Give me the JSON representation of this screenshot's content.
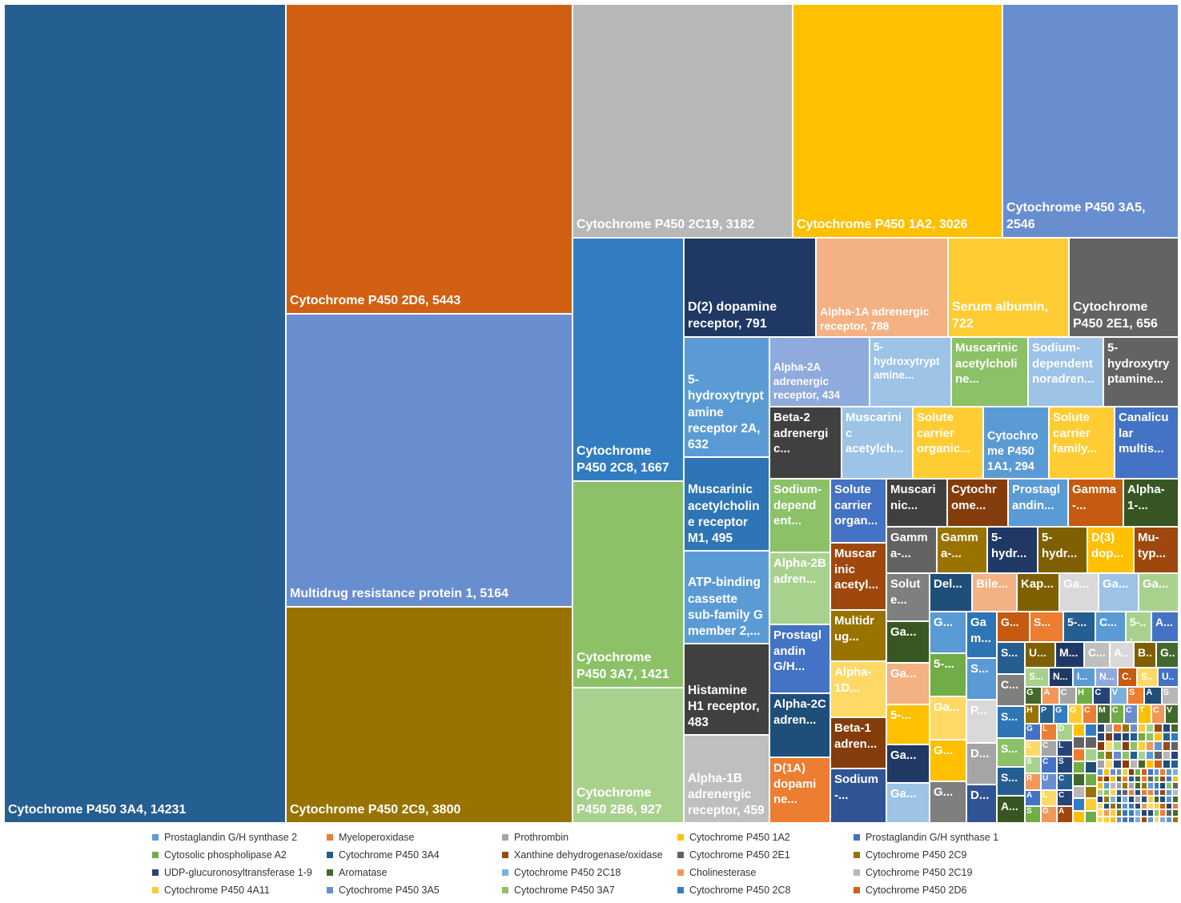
{
  "chart_data": {
    "type": "treemap",
    "title": "",
    "legend_position": "bottom",
    "legend": [
      {
        "label": "Prostaglandin G/H synthase 2",
        "color": "#5b9bd5"
      },
      {
        "label": "Myeloperoxidase",
        "color": "#ed7d31"
      },
      {
        "label": "Prothrombin",
        "color": "#a5a5a5"
      },
      {
        "label": "Cytochrome P450 1A2",
        "color": "#ffc000"
      },
      {
        "label": "Prostaglandin G/H synthase 1",
        "color": "#4472c4"
      },
      {
        "label": "Cytosolic phospholipase A2",
        "color": "#70ad47"
      },
      {
        "label": "Cytochrome P450 3A4",
        "color": "#255e91"
      },
      {
        "label": "Xanthine dehydrogenase/oxidase",
        "color": "#9e480e"
      },
      {
        "label": "Cytochrome P450 2E1",
        "color": "#636363"
      },
      {
        "label": "Cytochrome P450 2C9",
        "color": "#997300"
      },
      {
        "label": "UDP-glucuronosyltransferase 1-9",
        "color": "#264478"
      },
      {
        "label": "Aromatase",
        "color": "#43682b"
      },
      {
        "label": "Cytochrome P450 2C18",
        "color": "#7cafdd"
      },
      {
        "label": "Cholinesterase",
        "color": "#f1975a"
      },
      {
        "label": "Cytochrome P450 2C19",
        "color": "#b7b7b7"
      },
      {
        "label": "Cytochrome P450 4A11",
        "color": "#ffcd33"
      },
      {
        "label": "Cytochrome P450 3A5",
        "color": "#698ed0"
      },
      {
        "label": "Cytochrome P450 3A7",
        "color": "#8cc168"
      },
      {
        "label": "Cytochrome P450 2C8",
        "color": "#327dc2"
      },
      {
        "label": "Cytochrome P450 2D6",
        "color": "#d26012"
      }
    ],
    "nodes": [
      {
        "label": "Cytochrome P450 3A4, 14231",
        "name": "Cytochrome P450 3A4",
        "value": 14231,
        "color": "#255e91"
      },
      {
        "label": "Cytochrome P450 2D6, 5443",
        "name": "Cytochrome P450 2D6",
        "value": 5443,
        "color": "#d26012"
      },
      {
        "label": "Multidrug resistance protein 1, 5164",
        "name": "Multidrug resistance protein 1",
        "value": 5164,
        "color": "#698ed0"
      },
      {
        "label": "Cytochrome P450 2C9, 3800",
        "name": "Cytochrome P450 2C9",
        "value": 3800,
        "color": "#997300"
      },
      {
        "label": "Cytochrome P450 2C19, 3182",
        "name": "Cytochrome P450 2C19",
        "value": 3182,
        "color": "#b7b7b7"
      },
      {
        "label": "Cytochrome P450 1A2, 3026",
        "name": "Cytochrome P450 1A2",
        "value": 3026,
        "color": "#ffc000"
      },
      {
        "label": "Cytochrome P450 3A5, 2546",
        "name": "Cytochrome P450 3A5",
        "value": 2546,
        "color": "#698ed0"
      },
      {
        "label": "Cytochrome P450 2C8, 1667",
        "name": "Cytochrome P450 2C8",
        "value": 1667,
        "color": "#327dc2"
      },
      {
        "label": "Cytochrome P450 3A7, 1421",
        "name": "Cytochrome P450 3A7",
        "value": 1421,
        "color": "#8cc168"
      },
      {
        "label": "Cytochrome P450 2B6, 927",
        "name": "Cytochrome P450 2B6",
        "value": 927,
        "color": "#a9d18e"
      },
      {
        "label": "D(2) dopamine receptor, 791",
        "name": "D(2) dopamine receptor",
        "value": 791,
        "color": "#203864"
      },
      {
        "label": "Alpha-1A adrenergic receptor, 788",
        "name": "Alpha-1A adrenergic receptor",
        "value": 788,
        "color": "#f4b183"
      },
      {
        "label": "Serum albumin, 722",
        "name": "Serum albumin",
        "value": 722,
        "color": "#ffcd33"
      },
      {
        "label": "Cytochrome P450 2E1, 656",
        "name": "Cytochrome P450 2E1",
        "value": 656,
        "color": "#636363"
      },
      {
        "label": "5-hydroxytryptamine receptor 2A, 632",
        "name": "5-hydroxytryptamine receptor 2A",
        "value": 632,
        "color": "#5b9bd5"
      },
      {
        "label": "Muscarinic acetylcholine receptor M1, 495",
        "name": "Muscarinic acetylcholine receptor M1",
        "value": 495,
        "color": "#2e75b6"
      },
      {
        "label": "ATP-binding cassette sub-family G member 2,...",
        "name": "ATP-binding cassette sub-family G member 2",
        "value": 490,
        "color": "#5b9bd5"
      },
      {
        "label": "Histamine H1 receptor, 483",
        "name": "Histamine H1 receptor",
        "value": 483,
        "color": "#404040"
      },
      {
        "label": "Alpha-1B adrenergic receptor, 459",
        "name": "Alpha-1B adrenergic receptor",
        "value": 459,
        "color": "#bfbfbf"
      },
      {
        "label": "Alpha-2A adrenergic receptor, 434",
        "name": "Alpha-2A adrenergic receptor",
        "value": 434,
        "color": "#8faadc"
      },
      {
        "label": "Cytochrome P450 1A1, 294",
        "name": "Cytochrome P450 1A1",
        "value": 294,
        "color": "#5b9bd5"
      }
    ],
    "small_cell_labels": [
      "5-hydroxytrypt amine...",
      "Muscarinic acetylcholi ne...",
      "Sodium-dependent noradren...",
      "5-hydroxytry ptamine...",
      "Beta-2 adrenergi c...",
      "Muscarini c acetylch...",
      "Solute carrier organic...",
      "Solute carrier family...",
      "Canalicu lar multis...",
      "Sodium-depend ent...",
      "Solute carrier organ...",
      "Muscari nic...",
      "Cytochr ome...",
      "Prostagl andin...",
      "Gamma -...",
      "Alpha-1-...",
      "Gamm a-...",
      "5-hydr...",
      "D(3) dop...",
      "Mu-typ...",
      "Alpha-2B adren...",
      "Muscar inic acetyl...",
      "Solut e...",
      "Del...",
      "Bile...",
      "Kap...",
      "Ga...",
      "Multidr ug...",
      "Ga m...",
      "G...",
      "S...",
      "5-...",
      "C...",
      "A...",
      "Prostagl andin G/H...",
      "U...",
      "M...",
      "B...",
      "Alpha-1D...",
      "Alpha-2C adren...",
      "5-...",
      "P...",
      "N...",
      "I...",
      "H...",
      "V...",
      "Beta-1 adren...",
      "D...",
      "D(1A) dopami ne...",
      "Sodium -...",
      "L...",
      "R..."
    ]
  }
}
